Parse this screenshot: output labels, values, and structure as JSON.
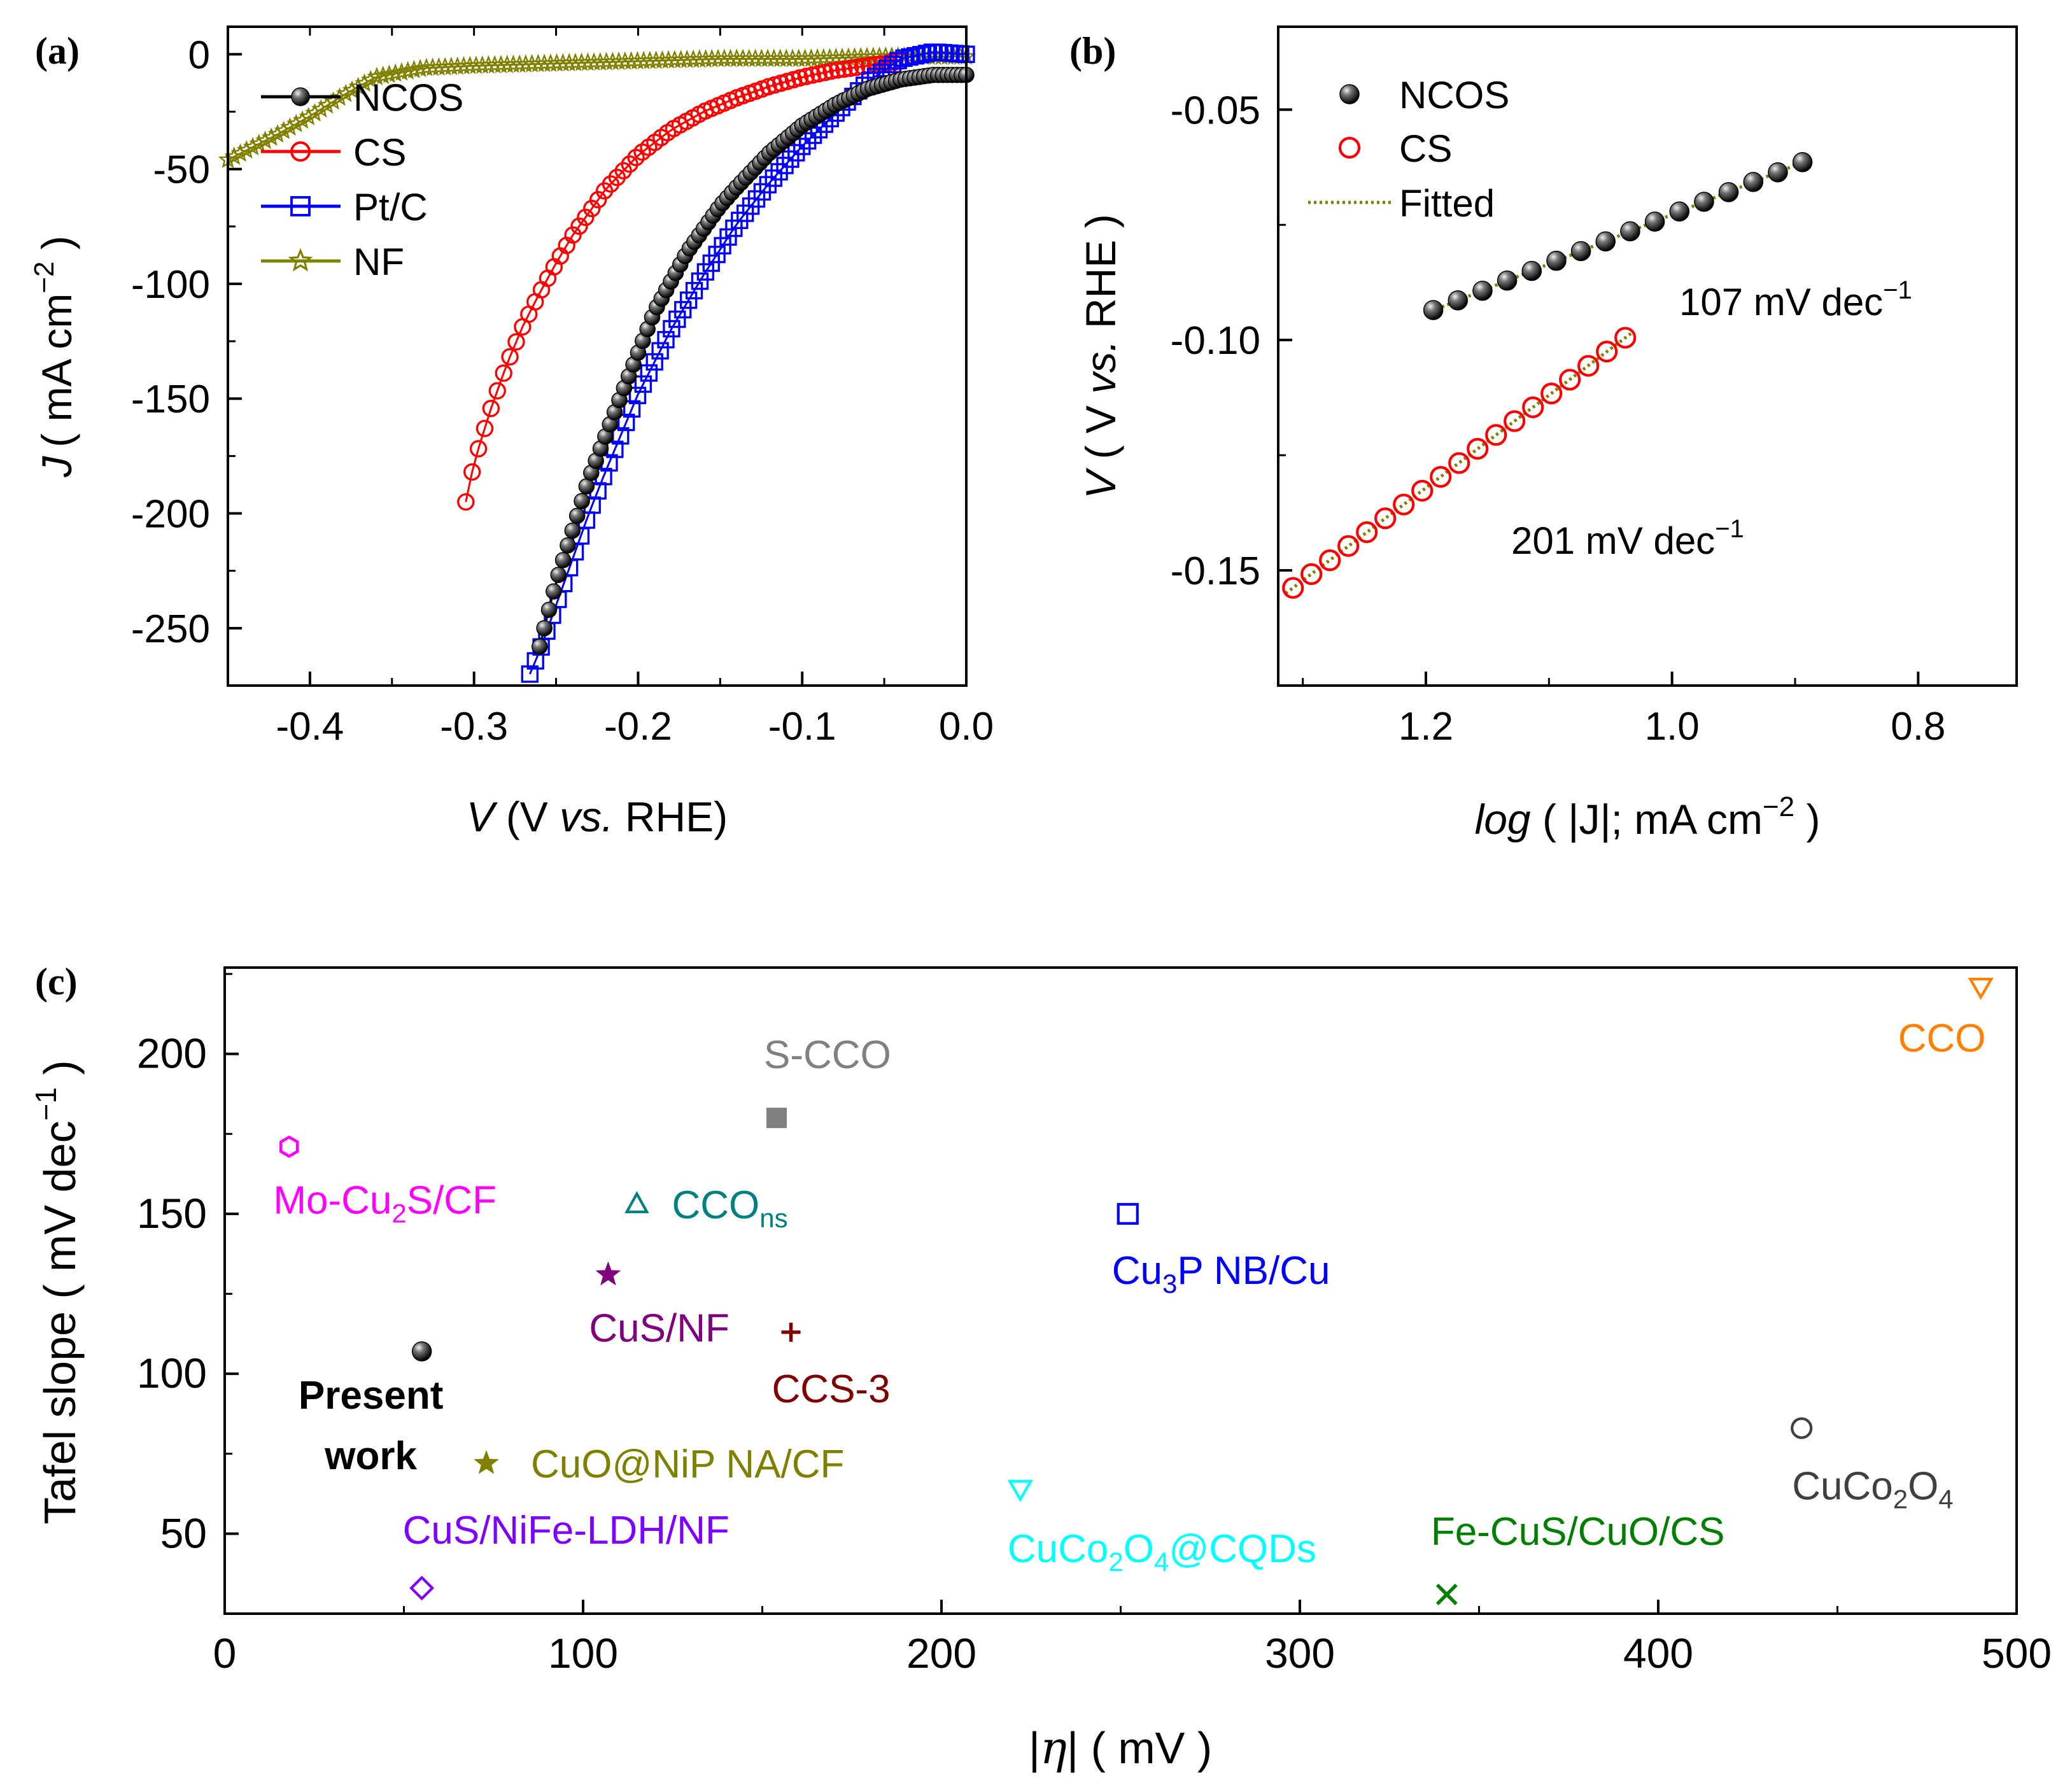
{
  "chart_data": [
    {
      "panel_label": "(a)",
      "type": "line",
      "xlabel_italic": "V",
      "xlabel_parts": [
        "(V ",
        "vs.",
        " RHE)"
      ],
      "ylabel_italic": "J",
      "ylabel_text": "( mA cm",
      "ylabel_exp": "−2",
      "ylabel_close": " )",
      "xlim": [
        -0.45,
        0.0
      ],
      "ylim": [
        -275,
        12
      ],
      "xticks": [
        -0.4,
        -0.3,
        -0.2,
        -0.1,
        0.0
      ],
      "xtick_labels": [
        "-0.4",
        "-0.3",
        "-0.2",
        "-0.1",
        "0.0"
      ],
      "yticks": [
        0,
        -50,
        -100,
        -150,
        -200,
        -250
      ],
      "ytick_labels": [
        "0",
        "-50",
        "-100",
        "-150",
        "-200",
        "-250"
      ],
      "legend": {
        "location": "top-left",
        "entries": [
          "NCOS",
          "CS",
          "Pt/C",
          "NF"
        ]
      },
      "series": [
        {
          "name": "NCOS",
          "marker": "ball",
          "color": "#000000",
          "x_start": -0.26,
          "x_end": 0.0,
          "n": 92,
          "x": [
            -0.26,
            -0.25,
            -0.23,
            -0.21,
            -0.2,
            -0.19,
            -0.17,
            -0.15,
            -0.14,
            -0.12,
            -0.1,
            -0.08,
            -0.06,
            -0.04,
            -0.02,
            0.0
          ],
          "y": [
            -258,
            -230,
            -185,
            -148,
            -130,
            -112,
            -86,
            -66,
            -58,
            -43,
            -31,
            -22,
            -15,
            -11,
            -9,
            -9
          ]
        },
        {
          "name": "CS",
          "marker": "circle-open",
          "color": "#ff0000",
          "x_start": -0.305,
          "x_end": -0.04,
          "n": 70,
          "x": [
            -0.305,
            -0.3,
            -0.29,
            -0.28,
            -0.27,
            -0.26,
            -0.25,
            -0.24,
            -0.22,
            -0.2,
            -0.18,
            -0.16,
            -0.14,
            -0.12,
            -0.1,
            -0.08,
            -0.06,
            -0.04
          ],
          "y": [
            -195,
            -178,
            -155,
            -135,
            -118,
            -104,
            -91,
            -79,
            -59,
            -44,
            -33,
            -25,
            -19,
            -14,
            -10,
            -7,
            -5,
            -3
          ]
        },
        {
          "name": "Pt/C",
          "marker": "square-open",
          "color": "#0000ff",
          "x_start": -0.266,
          "x_end": 0.0,
          "n": 78,
          "x": [
            -0.266,
            -0.26,
            -0.25,
            -0.24,
            -0.23,
            -0.22,
            -0.2,
            -0.18,
            -0.16,
            -0.14,
            -0.12,
            -0.1,
            -0.08,
            -0.06,
            -0.04,
            -0.02,
            0.0
          ],
          "y": [
            -270,
            -260,
            -240,
            -220,
            -200,
            -182,
            -148,
            -120,
            -96,
            -74,
            -56,
            -40,
            -26,
            -12,
            -2,
            1,
            0
          ]
        },
        {
          "name": "NF",
          "marker": "star-open",
          "color": "#808000",
          "x_start": -0.45,
          "x_end": 0.0,
          "n": 120,
          "x": [
            -0.45,
            -0.42,
            -0.4,
            -0.38,
            -0.36,
            -0.33,
            -0.3,
            -0.25,
            -0.2,
            -0.15,
            -0.1,
            -0.05,
            0.0
          ],
          "y": [
            -46,
            -35,
            -27,
            -18,
            -10,
            -6,
            -5,
            -4,
            -3,
            -2,
            -2,
            -1,
            -1
          ]
        }
      ]
    },
    {
      "panel_label": "(b)",
      "type": "scatter",
      "xlabel_italic": "log",
      "xlabel_text": " ( |J|; mA cm",
      "xlabel_exp": "−2",
      "xlabel_close": " )",
      "ylabel_italic": "V",
      "ylabel_parts": [
        " ( V ",
        "vs.",
        " RHE )"
      ],
      "xlim": [
        1.32,
        0.72
      ],
      "ylim": [
        -0.175,
        -0.032
      ],
      "xticks": [
        1.2,
        1.0,
        0.8
      ],
      "xtick_labels": [
        "1.2",
        "1.0",
        "0.8"
      ],
      "yticks": [
        -0.05,
        -0.1,
        -0.15
      ],
      "ytick_labels": [
        "-0.05",
        "-0.10",
        "-0.15"
      ],
      "legend": {
        "location": "top-left",
        "entries": [
          "NCOS",
          "CS",
          "Fitted"
        ]
      },
      "annotations": [
        "107 mV dec",
        "201 mV dec"
      ],
      "annotation_exp": "−1",
      "series": [
        {
          "name": "NCOS",
          "marker": "ball",
          "color": "#000000",
          "x": [
            1.194,
            1.174,
            1.154,
            1.134,
            1.114,
            1.094,
            1.074,
            1.054,
            1.034,
            1.014,
            0.994,
            0.974,
            0.954,
            0.934,
            0.914,
            0.894
          ],
          "y": [
            -0.0935,
            -0.0914,
            -0.0893,
            -0.0871,
            -0.085,
            -0.0828,
            -0.0807,
            -0.0786,
            -0.0764,
            -0.0743,
            -0.0721,
            -0.07,
            -0.0679,
            -0.0657,
            -0.0636,
            -0.0614
          ]
        },
        {
          "name": "CS",
          "marker": "circle-open",
          "color": "#ff0000",
          "x": [
            1.308,
            1.293,
            1.278,
            1.263,
            1.248,
            1.233,
            1.218,
            1.203,
            1.188,
            1.173,
            1.158,
            1.143,
            1.128,
            1.113,
            1.098,
            1.083,
            1.068,
            1.053,
            1.038
          ],
          "y": [
            -0.1538,
            -0.1508,
            -0.1478,
            -0.1447,
            -0.1417,
            -0.1387,
            -0.1357,
            -0.1327,
            -0.1297,
            -0.1267,
            -0.1236,
            -0.1206,
            -0.1176,
            -0.1146,
            -0.1116,
            -0.1086,
            -0.1056,
            -0.1025,
            -0.0995
          ]
        }
      ],
      "fits": [
        {
          "name": "Fitted NCOS",
          "slope_mV_dec": 107,
          "x": [
            1.2,
            0.89
          ],
          "y": [
            -0.0942,
            -0.061
          ]
        },
        {
          "name": "Fitted CS",
          "slope_mV_dec": 201,
          "x": [
            1.314,
            1.032
          ],
          "y": [
            -0.155,
            -0.0983
          ]
        }
      ],
      "fit_color": "#808000"
    },
    {
      "panel_label": "(c)",
      "type": "scatter",
      "xlabel": "|η| ( mV )",
      "xlabel_parts": [
        "|",
        "η",
        "| ( mV )"
      ],
      "ylabel": "Tafel slope ( mV dec",
      "ylabel_exp": "−1",
      "ylabel_close": " )",
      "xlim": [
        0,
        500
      ],
      "ylim": [
        25,
        227
      ],
      "xticks": [
        0,
        100,
        200,
        300,
        400,
        500
      ],
      "xtick_labels": [
        "0",
        "100",
        "200",
        "300",
        "400",
        "500"
      ],
      "yticks": [
        50,
        100,
        150,
        200
      ],
      "ytick_labels": [
        "50",
        "100",
        "150",
        "200"
      ],
      "points": [
        {
          "name": "Present work",
          "label": [
            "Present",
            "work"
          ],
          "bold": true,
          "x": 55,
          "y": 107,
          "marker": "ball",
          "color": "#000000"
        },
        {
          "name": "Mo-Cu2S/CF",
          "label": [
            "Mo-Cu",
            "2",
            "S/CF"
          ],
          "x": 18,
          "y": 171,
          "marker": "hexagon-open",
          "color": "#ff00ff"
        },
        {
          "name": "S-CCO",
          "label": [
            "S-CCO"
          ],
          "x": 154,
          "y": 180,
          "marker": "square-filled",
          "color": "#808080"
        },
        {
          "name": "CCOns",
          "label": [
            "CCO",
            "ns"
          ],
          "x": 115,
          "y": 153,
          "marker": "triangle-up-open",
          "color": "#008080"
        },
        {
          "name": "CuS/NF",
          "label": [
            "CuS/NF"
          ],
          "x": 107,
          "y": 131,
          "marker": "star-filled",
          "color": "#800080"
        },
        {
          "name": "CCS-3",
          "label": [
            "CCS-3"
          ],
          "x": 158,
          "y": 113,
          "marker": "plus",
          "color": "#800000"
        },
        {
          "name": "CuO@NiP NA/CF",
          "label": [
            "CuO@NiP NA/CF"
          ],
          "x": 73,
          "y": 72,
          "marker": "star-filled",
          "color": "#808000"
        },
        {
          "name": "CuS/NiFe-LDH/NF",
          "label": [
            "CuS/NiFe-LDH/NF"
          ],
          "x": 55,
          "y": 33,
          "marker": "diamond-open",
          "color": "#8000ff"
        },
        {
          "name": "Cu3P NB/Cu",
          "label": [
            "Cu",
            "3",
            "P NB/Cu"
          ],
          "x": 252,
          "y": 150,
          "marker": "square-open",
          "color": "#0000ff"
        },
        {
          "name": "CuCo2O4@CQDs",
          "label": [
            "CuCo",
            "2",
            "O",
            "4",
            "@CQDs"
          ],
          "x": 222,
          "y": 64,
          "marker": "triangle-down-open",
          "color": "#00ffff"
        },
        {
          "name": "Fe-CuS/CuO/CS",
          "label": [
            "Fe-CuS/CuO/CS"
          ],
          "x": 341,
          "y": 31,
          "marker": "cross",
          "color": "#008000"
        },
        {
          "name": "CuCo2O4",
          "label": [
            "CuCo",
            "2",
            "O",
            "4"
          ],
          "x": 440,
          "y": 83,
          "marker": "circle-open",
          "color": "#404040"
        },
        {
          "name": "CCO",
          "label": [
            "CCO"
          ],
          "x": 490,
          "y": 221,
          "marker": "triangle-down-open",
          "color": "#ff8000"
        }
      ]
    }
  ]
}
